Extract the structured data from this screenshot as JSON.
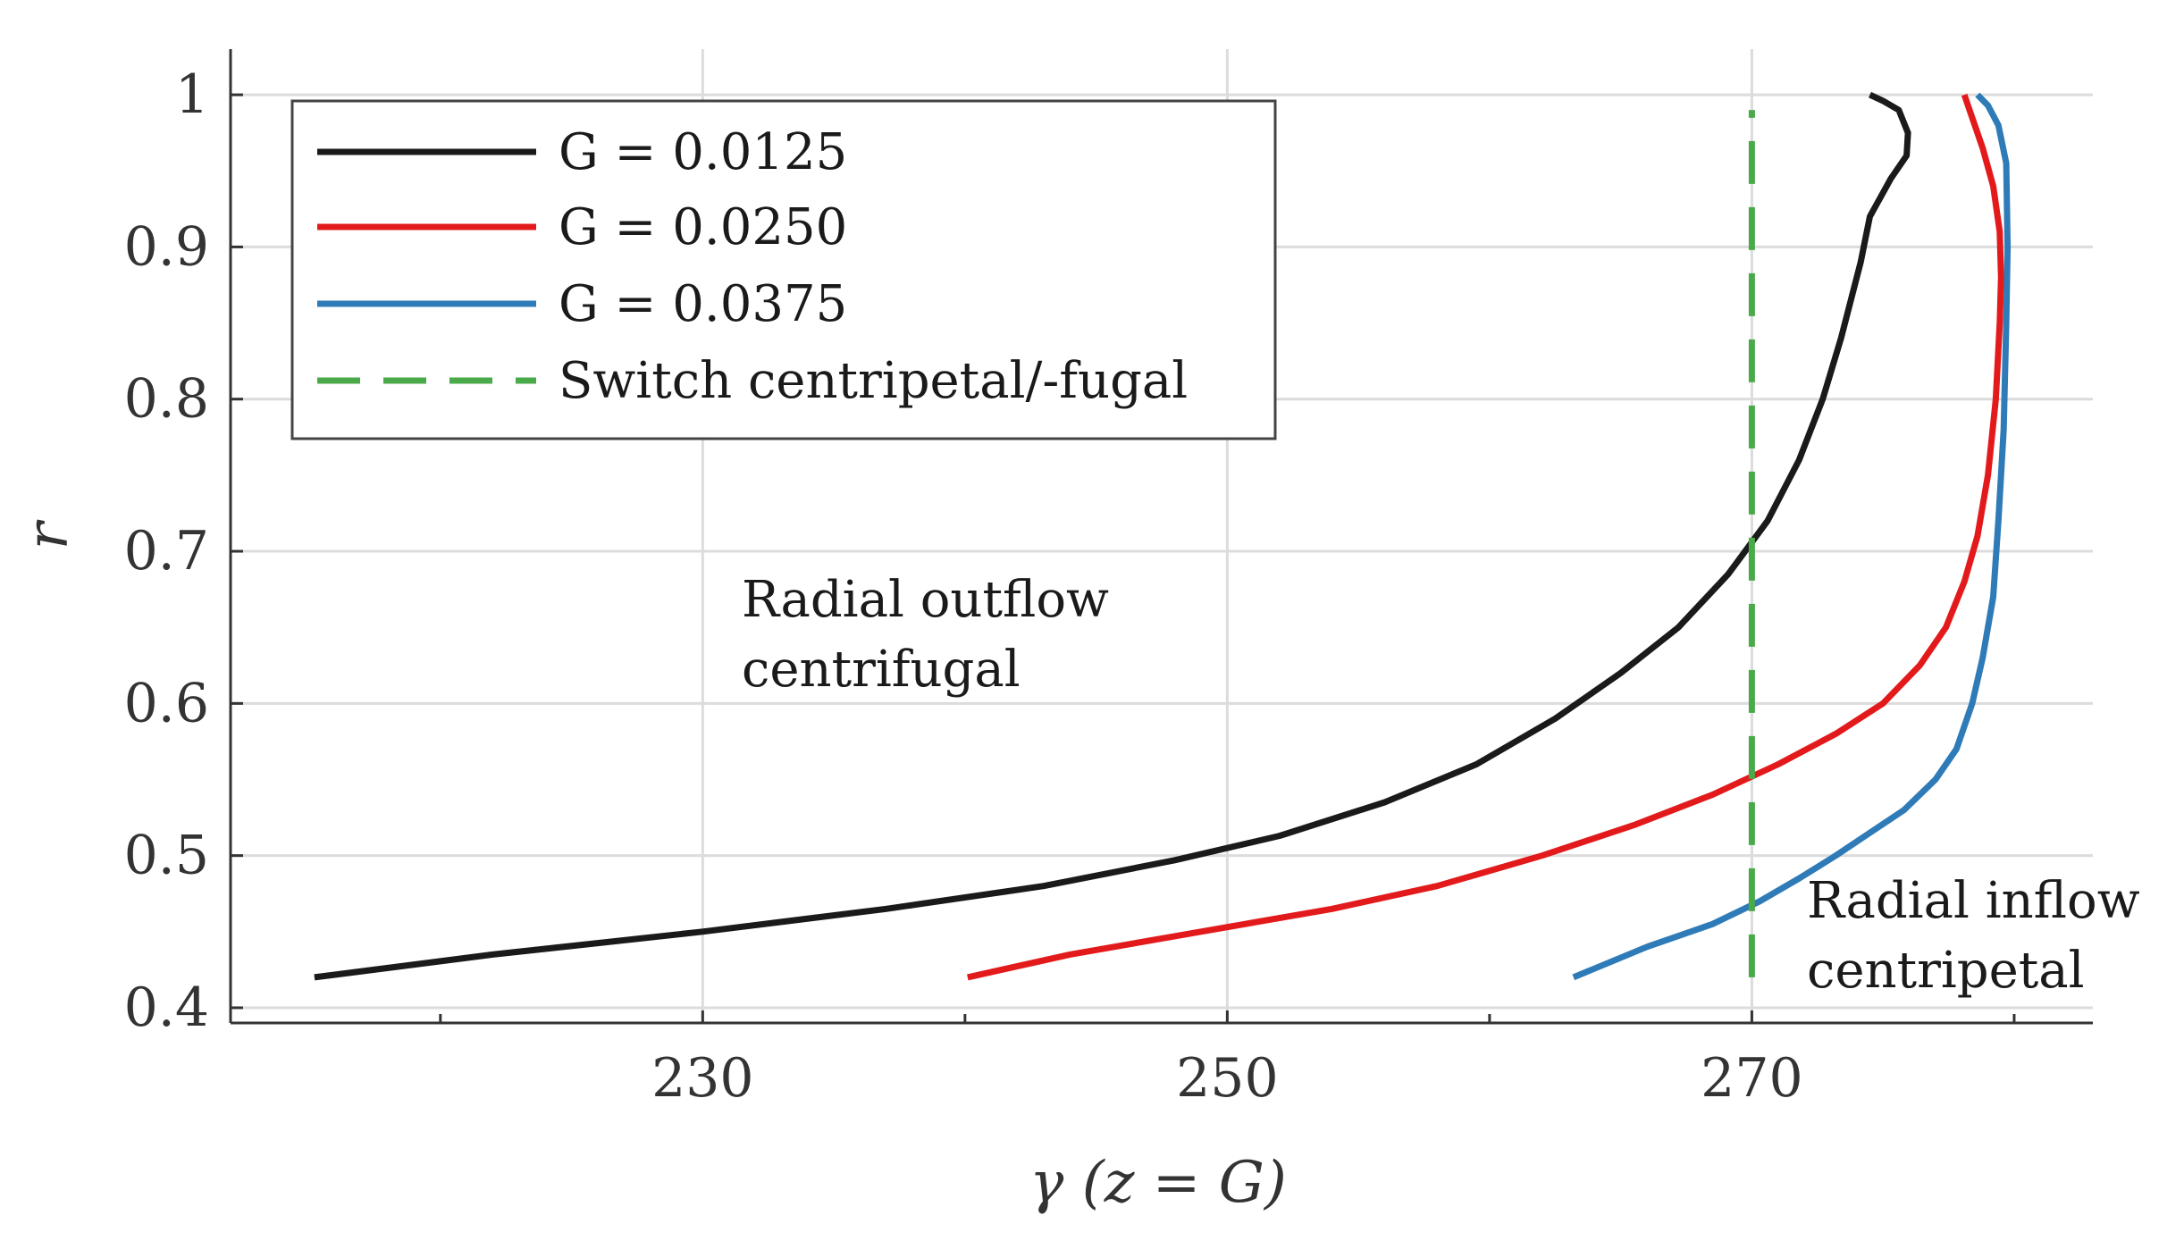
{
  "chart_data": {
    "type": "line",
    "title": "",
    "xlabel": "γ (z = G)",
    "ylabel": "r",
    "xlim": [
      212,
      283
    ],
    "ylim": [
      0.39,
      1.03
    ],
    "grid": true,
    "legend_position": "top-left",
    "x_ticks": [
      230,
      250,
      270
    ],
    "x_tick_labels": [
      "230",
      "250",
      "270"
    ],
    "x_minor_ticks": [
      220,
      240,
      260,
      280
    ],
    "y_ticks": [
      0.4,
      0.5,
      0.6,
      0.7,
      0.8,
      0.9,
      1.0
    ],
    "y_tick_labels": [
      "0.4",
      "0.5",
      "0.6",
      "0.7",
      "0.8",
      "0.9",
      "1"
    ],
    "series": [
      {
        "name": "G = 0.0125",
        "color": "#1a1a1a",
        "style": "solid",
        "x": [
          215.2,
          222,
          230,
          237,
          243,
          248,
          252,
          256,
          259.5,
          262.5,
          265,
          267.2,
          269.1,
          270.6,
          271.8,
          272.7,
          273.4,
          273.85,
          274.15,
          274.5,
          275.3,
          275.9,
          275.95,
          275.6,
          275.0,
          274.5
        ],
        "y": [
          0.42,
          0.435,
          0.45,
          0.465,
          0.48,
          0.497,
          0.513,
          0.535,
          0.56,
          0.59,
          0.62,
          0.65,
          0.685,
          0.72,
          0.76,
          0.8,
          0.84,
          0.87,
          0.89,
          0.92,
          0.945,
          0.96,
          0.975,
          0.99,
          0.996,
          1.0
        ]
      },
      {
        "name": "G = 0.0250",
        "color": "#e31a1c",
        "style": "solid",
        "x": [
          240.1,
          244,
          249,
          254,
          258,
          262,
          265.5,
          268.5,
          271,
          273.2,
          275,
          276.4,
          277.4,
          278.1,
          278.6,
          279.0,
          279.3,
          279.45,
          279.5,
          279.45,
          279.2,
          278.8,
          278.3,
          278.1
        ],
        "y": [
          0.42,
          0.435,
          0.45,
          0.465,
          0.48,
          0.5,
          0.52,
          0.54,
          0.56,
          0.58,
          0.6,
          0.625,
          0.65,
          0.68,
          0.71,
          0.75,
          0.8,
          0.85,
          0.88,
          0.91,
          0.94,
          0.965,
          0.99,
          1.0
        ]
      },
      {
        "name": "G = 0.0375",
        "color": "#2e7bb8",
        "style": "solid",
        "x": [
          263.2,
          266,
          268.5,
          270.3,
          271.8,
          273.2,
          274.5,
          275.8,
          277,
          277.8,
          278.4,
          278.8,
          279.2,
          279.4,
          279.6,
          279.7,
          279.75,
          279.7,
          279.4,
          279.0,
          278.6
        ],
        "y": [
          0.42,
          0.44,
          0.455,
          0.47,
          0.485,
          0.5,
          0.515,
          0.53,
          0.55,
          0.57,
          0.6,
          0.63,
          0.67,
          0.72,
          0.78,
          0.85,
          0.9,
          0.955,
          0.98,
          0.993,
          1.0
        ]
      },
      {
        "name": "Switch centripetal/-fugal",
        "color": "#4aaa4a",
        "style": "dashed",
        "x": [
          270,
          270
        ],
        "y": [
          0.42,
          0.99
        ]
      }
    ],
    "annotations": [
      {
        "lines": [
          "Radial outflow",
          "centrifugal"
        ]
      },
      {
        "lines": [
          "Radial inflow",
          "centripetal"
        ]
      }
    ]
  }
}
